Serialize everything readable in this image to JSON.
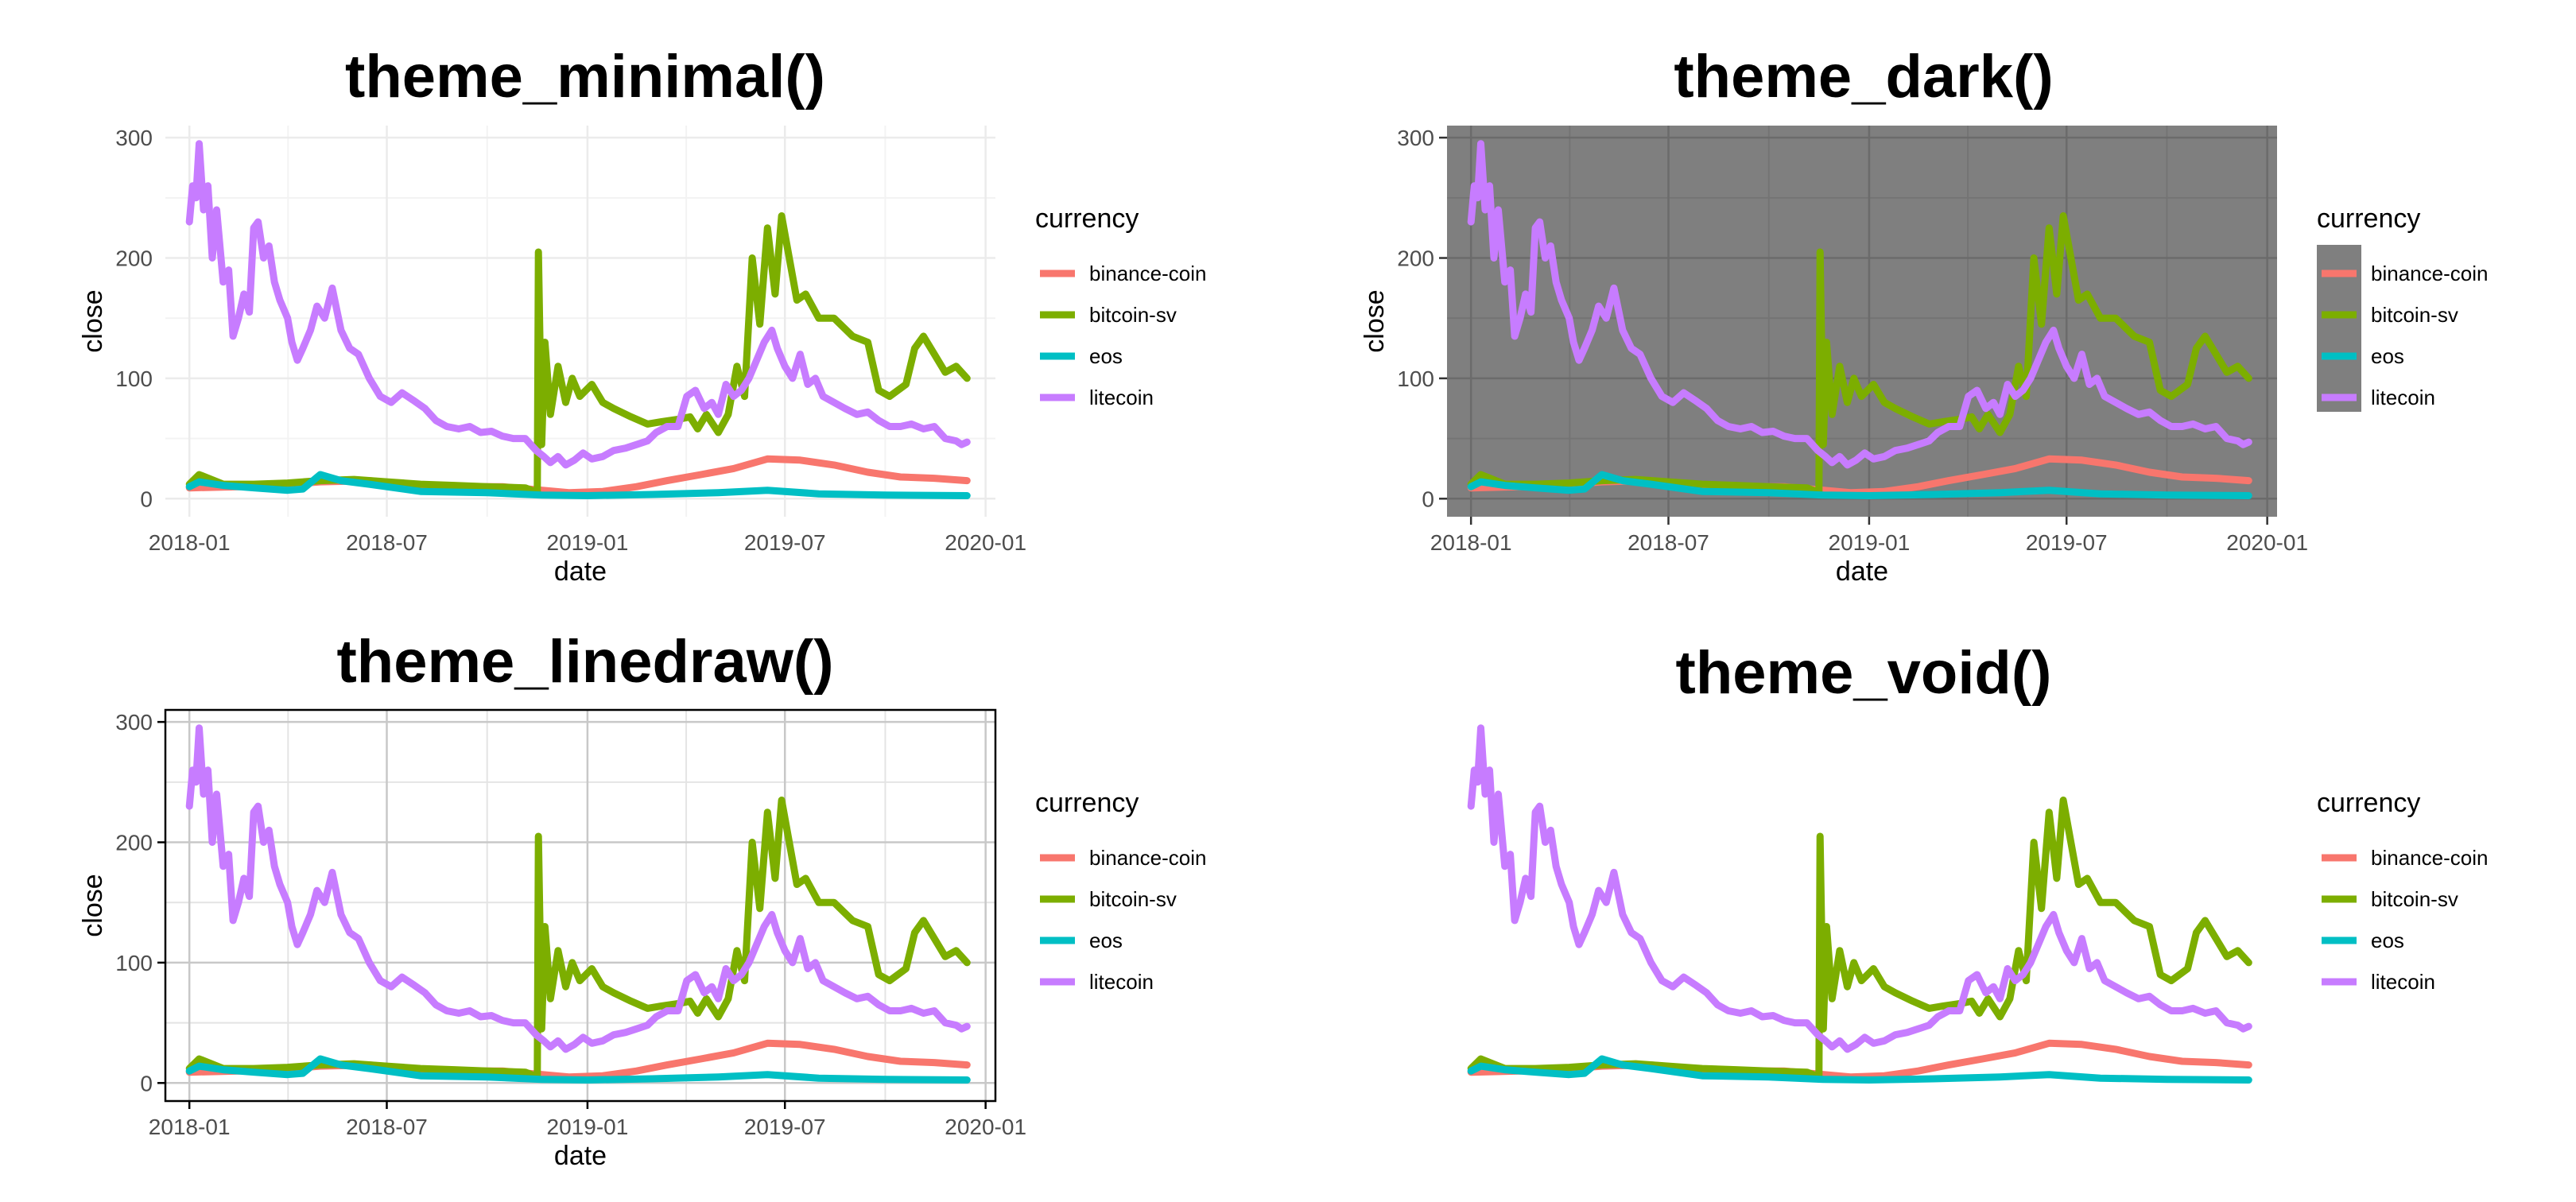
{
  "figure": {
    "layout": "2x2 grid of panels"
  },
  "chart_data": [
    {
      "type": "line",
      "title": "theme_minimal()",
      "theme": "minimal",
      "xlabel": "date",
      "ylabel": "close",
      "xticks": [
        "2018-01",
        "2018-07",
        "2019-01",
        "2019-07",
        "2020-01"
      ],
      "yticks": [
        0,
        100,
        200,
        300
      ],
      "xlim": [
        "2017-12-10",
        "2020-01-10"
      ],
      "ylim": [
        -15,
        310
      ],
      "grid": true,
      "legend_placement": "right",
      "legend_title": "currency",
      "series_ref": "shared_series"
    },
    {
      "type": "line",
      "title": "theme_dark()",
      "theme": "dark",
      "xlabel": "date",
      "ylabel": "close",
      "xticks": [
        "2018-01",
        "2018-07",
        "2019-01",
        "2019-07",
        "2020-01"
      ],
      "yticks": [
        0,
        100,
        200,
        300
      ],
      "xlim": [
        "2017-12-10",
        "2020-01-10"
      ],
      "ylim": [
        -15,
        310
      ],
      "grid": true,
      "legend_placement": "right",
      "legend_title": "currency",
      "series_ref": "shared_series"
    },
    {
      "type": "line",
      "title": "theme_linedraw()",
      "theme": "linedraw",
      "xlabel": "date",
      "ylabel": "close",
      "xticks": [
        "2018-01",
        "2018-07",
        "2019-01",
        "2019-07",
        "2020-01"
      ],
      "yticks": [
        0,
        100,
        200,
        300
      ],
      "xlim": [
        "2017-12-10",
        "2020-01-10"
      ],
      "ylim": [
        -15,
        310
      ],
      "grid": true,
      "legend_placement": "right",
      "legend_title": "currency",
      "series_ref": "shared_series"
    },
    {
      "type": "line",
      "title": "theme_void()",
      "theme": "void",
      "xlabel": "",
      "ylabel": "",
      "xticks": [],
      "yticks": [],
      "xlim": [
        "2017-12-10",
        "2020-01-10"
      ],
      "ylim": [
        -15,
        310
      ],
      "grid": false,
      "legend_placement": "right",
      "legend_title": "currency",
      "series_ref": "shared_series"
    }
  ],
  "shared_series": [
    {
      "name": "binance-coin",
      "color": "#F8766D",
      "x": [
        "2018-01-01",
        "2018-02-15",
        "2018-04-01",
        "2018-05-01",
        "2018-06-15",
        "2018-08-15",
        "2018-10-15",
        "2018-12-15",
        "2019-01-15",
        "2019-02-15",
        "2019-03-15",
        "2019-04-15",
        "2019-05-15",
        "2019-06-15",
        "2019-07-15",
        "2019-08-15",
        "2019-09-15",
        "2019-10-15",
        "2019-11-15",
        "2019-12-15"
      ],
      "values": [
        9,
        10,
        12,
        14,
        15,
        10,
        10,
        5,
        6,
        10,
        15,
        20,
        25,
        33,
        32,
        28,
        22,
        18,
        17,
        15
      ]
    },
    {
      "name": "bitcoin-sv",
      "color": "#7CAE00",
      "x": [
        "2018-01-01",
        "2018-01-10",
        "2018-02-01",
        "2018-03-01",
        "2018-04-01",
        "2018-05-01",
        "2018-06-01",
        "2018-07-01",
        "2018-08-01",
        "2018-09-01",
        "2018-10-01",
        "2018-11-05",
        "2018-11-16",
        "2018-11-17",
        "2018-11-20",
        "2018-11-23",
        "2018-11-28",
        "2018-12-05",
        "2018-12-12",
        "2018-12-18",
        "2018-12-25",
        "2019-01-05",
        "2019-01-15",
        "2019-01-25",
        "2019-02-10",
        "2019-02-25",
        "2019-03-10",
        "2019-03-25",
        "2019-04-05",
        "2019-04-12",
        "2019-04-20",
        "2019-05-01",
        "2019-05-10",
        "2019-05-18",
        "2019-05-25",
        "2019-06-01",
        "2019-06-08",
        "2019-06-15",
        "2019-06-22",
        "2019-06-28",
        "2019-07-05",
        "2019-07-12",
        "2019-07-20",
        "2019-08-01",
        "2019-08-15",
        "2019-09-01",
        "2019-09-15",
        "2019-09-25",
        "2019-10-05",
        "2019-10-20",
        "2019-10-28",
        "2019-11-05",
        "2019-11-15",
        "2019-11-25",
        "2019-12-05",
        "2019-12-15"
      ],
      "values": [
        12,
        20,
        12,
        12,
        13,
        15,
        16,
        14,
        12,
        11,
        10,
        9,
        5,
        205,
        45,
        130,
        70,
        110,
        80,
        100,
        85,
        95,
        80,
        75,
        68,
        62,
        64,
        66,
        68,
        58,
        70,
        55,
        70,
        110,
        85,
        200,
        145,
        225,
        170,
        235,
        200,
        165,
        170,
        150,
        150,
        135,
        130,
        90,
        85,
        95,
        125,
        135,
        120,
        105,
        110,
        100
      ]
    },
    {
      "name": "eos",
      "color": "#00BFC4",
      "x": [
        "2018-01-01",
        "2018-01-10",
        "2018-02-01",
        "2018-03-01",
        "2018-04-01",
        "2018-04-15",
        "2018-05-01",
        "2018-05-20",
        "2018-06-15",
        "2018-08-01",
        "2018-10-01",
        "2018-11-20",
        "2019-01-01",
        "2019-03-01",
        "2019-05-01",
        "2019-06-15",
        "2019-08-01",
        "2019-10-01",
        "2019-12-15"
      ],
      "values": [
        10,
        14,
        11,
        9,
        7,
        8,
        20,
        15,
        12,
        6,
        5,
        3,
        2.5,
        3.5,
        5,
        7,
        4,
        3,
        2.5
      ]
    },
    {
      "name": "litecoin",
      "color": "#C77CFF",
      "x": [
        "2018-01-01",
        "2018-01-04",
        "2018-01-07",
        "2018-01-10",
        "2018-01-14",
        "2018-01-18",
        "2018-01-22",
        "2018-01-26",
        "2018-02-01",
        "2018-02-06",
        "2018-02-10",
        "2018-02-15",
        "2018-02-20",
        "2018-02-25",
        "2018-03-01",
        "2018-03-05",
        "2018-03-10",
        "2018-03-15",
        "2018-03-20",
        "2018-03-25",
        "2018-04-01",
        "2018-04-05",
        "2018-04-10",
        "2018-04-15",
        "2018-04-22",
        "2018-04-28",
        "2018-05-05",
        "2018-05-12",
        "2018-05-20",
        "2018-05-28",
        "2018-06-05",
        "2018-06-15",
        "2018-06-25",
        "2018-07-05",
        "2018-07-15",
        "2018-07-25",
        "2018-08-05",
        "2018-08-15",
        "2018-08-25",
        "2018-09-05",
        "2018-09-15",
        "2018-09-25",
        "2018-10-05",
        "2018-10-15",
        "2018-10-25",
        "2018-11-05",
        "2018-11-15",
        "2018-11-22",
        "2018-11-28",
        "2018-12-05",
        "2018-12-12",
        "2018-12-20",
        "2018-12-28",
        "2019-01-05",
        "2019-01-15",
        "2019-01-25",
        "2019-02-05",
        "2019-02-15",
        "2019-02-25",
        "2019-03-05",
        "2019-03-15",
        "2019-03-25",
        "2019-04-02",
        "2019-04-10",
        "2019-04-18",
        "2019-04-25",
        "2019-05-01",
        "2019-05-08",
        "2019-05-15",
        "2019-05-22",
        "2019-05-29",
        "2019-06-05",
        "2019-06-12",
        "2019-06-19",
        "2019-06-24",
        "2019-07-01",
        "2019-07-08",
        "2019-07-15",
        "2019-07-22",
        "2019-07-29",
        "2019-08-05",
        "2019-08-15",
        "2019-08-25",
        "2019-09-05",
        "2019-09-15",
        "2019-09-25",
        "2019-10-05",
        "2019-10-15",
        "2019-10-25",
        "2019-11-05",
        "2019-11-15",
        "2019-11-25",
        "2019-12-05",
        "2019-12-10",
        "2019-12-15"
      ],
      "values": [
        230,
        260,
        250,
        295,
        240,
        260,
        200,
        240,
        180,
        190,
        135,
        150,
        170,
        155,
        225,
        230,
        200,
        210,
        180,
        165,
        150,
        130,
        115,
        125,
        140,
        160,
        150,
        175,
        140,
        125,
        120,
        100,
        85,
        80,
        88,
        82,
        75,
        65,
        60,
        58,
        60,
        55,
        56,
        52,
        50,
        50,
        40,
        35,
        30,
        35,
        28,
        32,
        38,
        33,
        35,
        40,
        42,
        45,
        48,
        55,
        60,
        60,
        85,
        90,
        75,
        80,
        70,
        95,
        85,
        90,
        100,
        115,
        130,
        140,
        125,
        110,
        100,
        120,
        95,
        100,
        85,
        80,
        75,
        70,
        72,
        65,
        60,
        60,
        62,
        58,
        60,
        50,
        48,
        45,
        47
      ]
    }
  ]
}
